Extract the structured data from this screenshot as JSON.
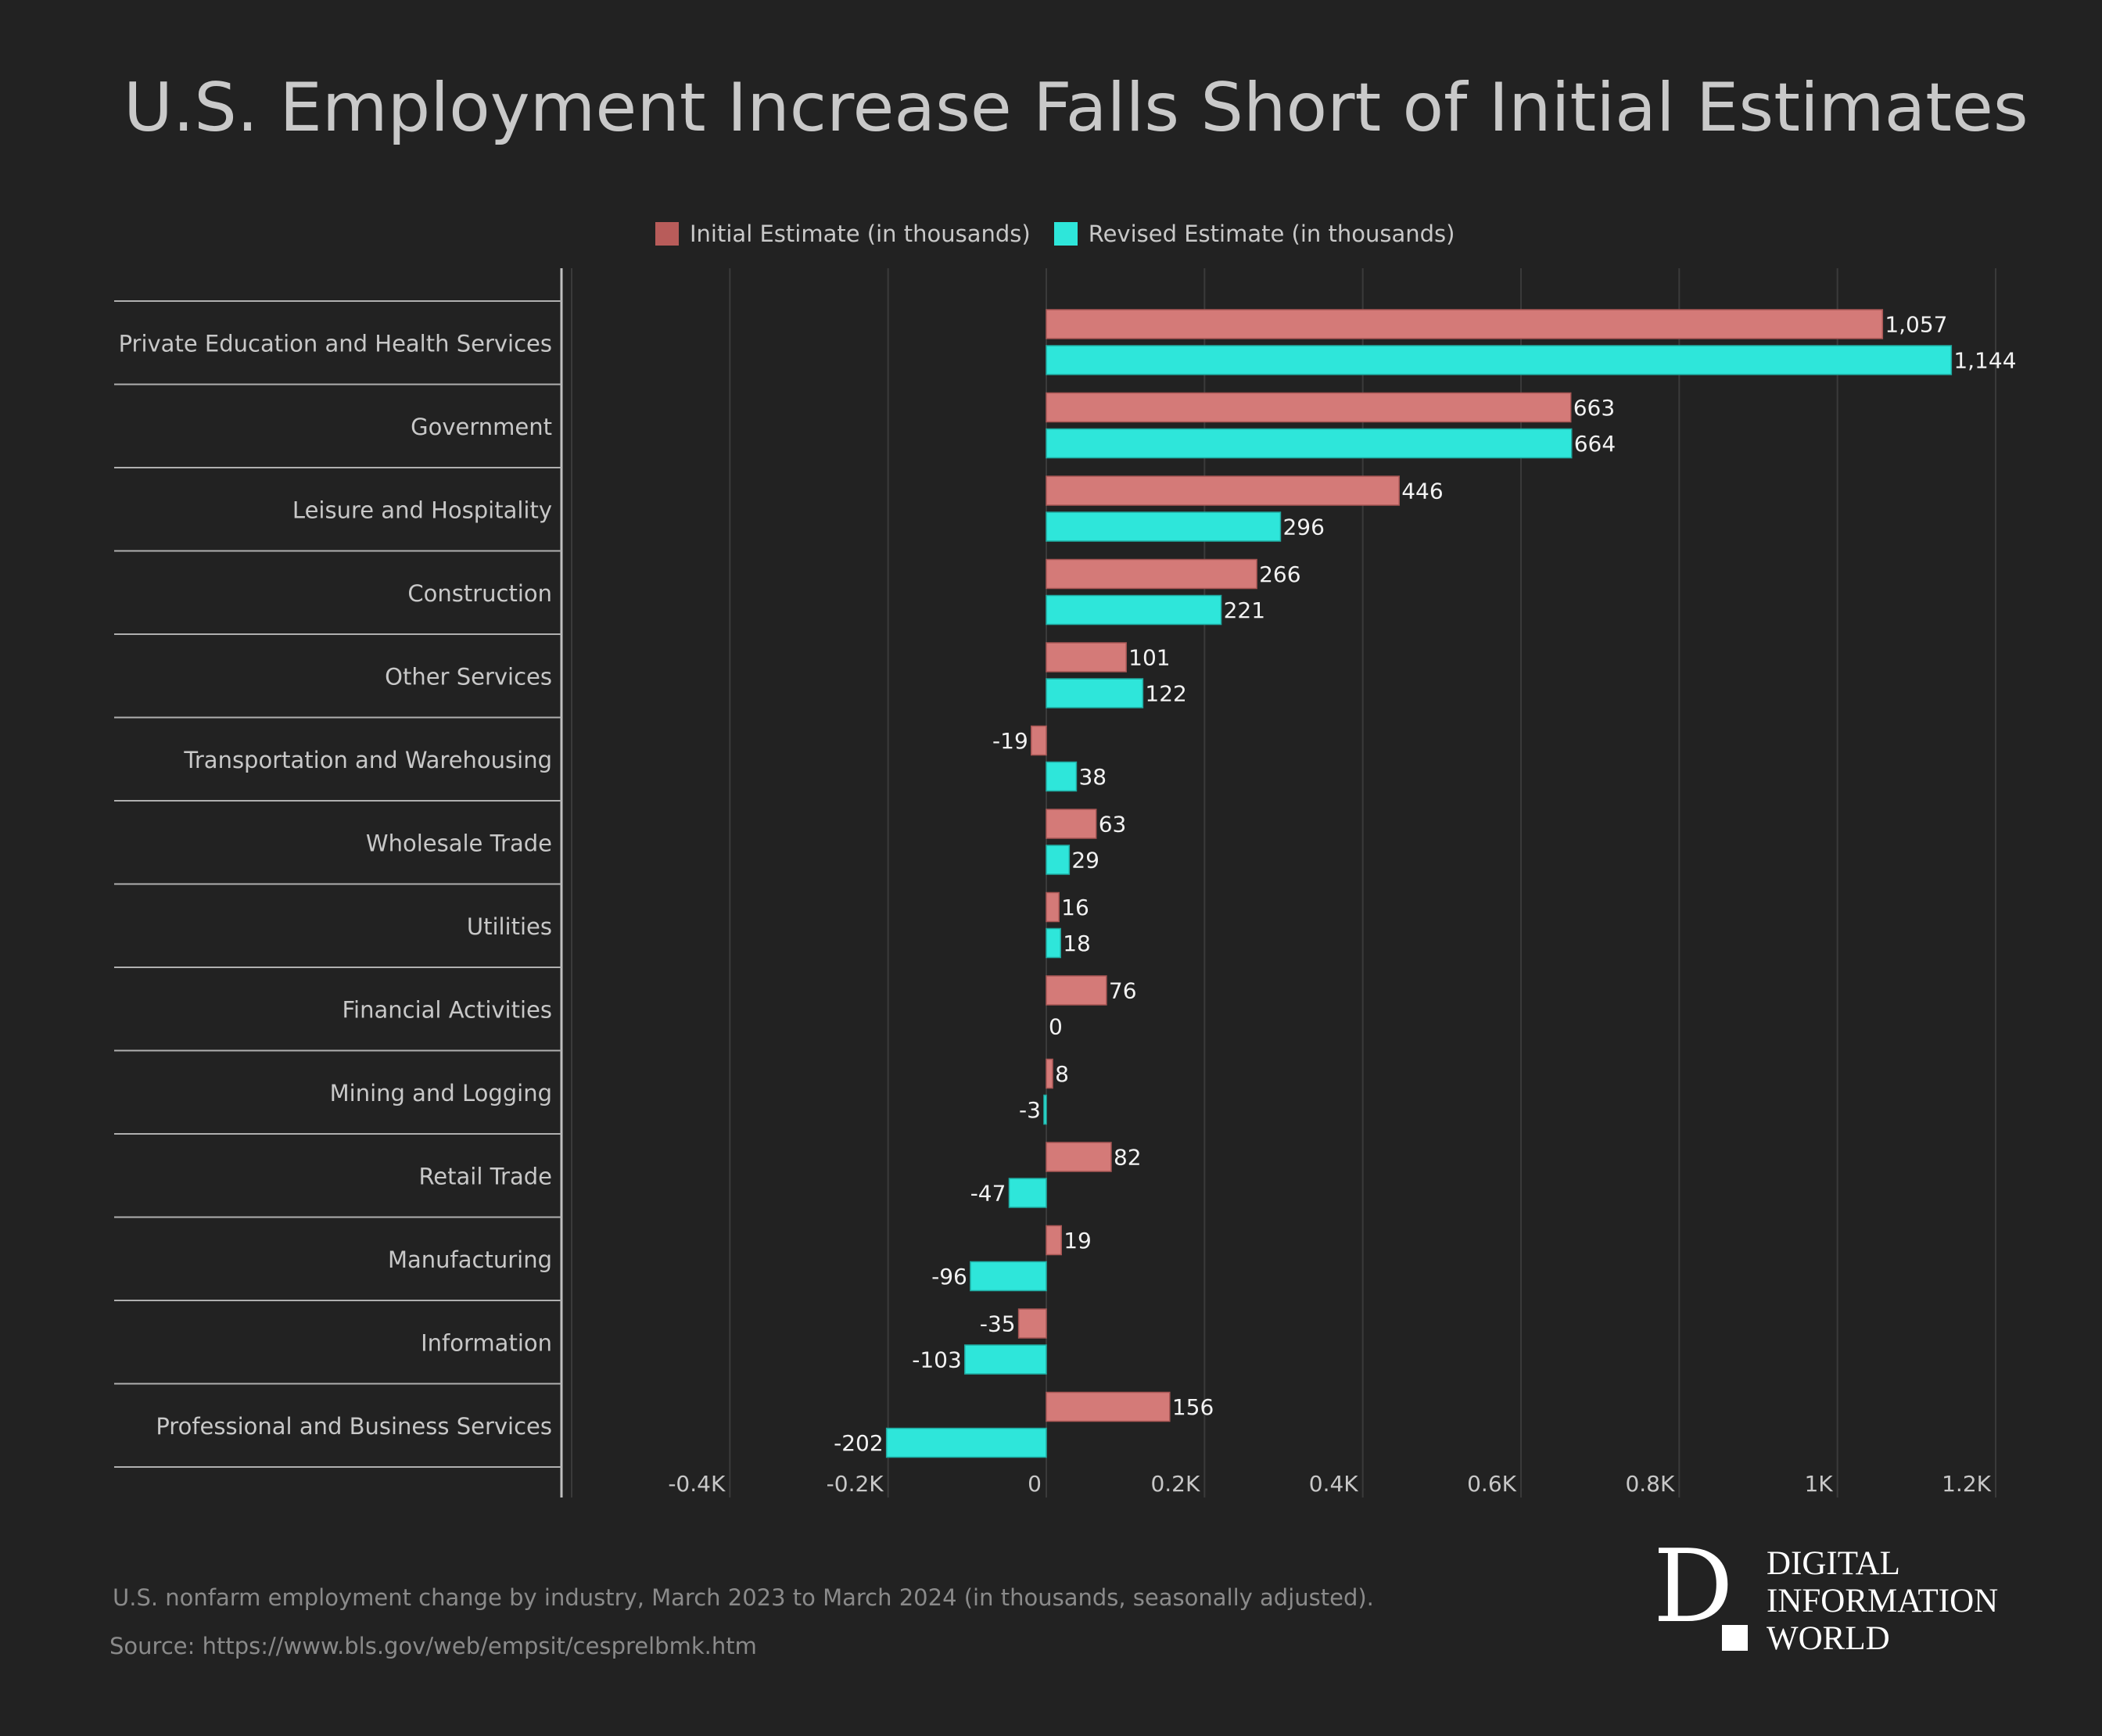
{
  "title": "U.S. Employment Increase Falls Short of Initial Estimates",
  "legend": [
    {
      "label": "Initial Estimate (in thousands)",
      "color": "#d47a78",
      "swatch": "#b85c5a"
    },
    {
      "label": "Revised Estimate (in thousands)",
      "color": "#2ee6da",
      "swatch": "#2ee6da"
    }
  ],
  "footer": {
    "note": "U.S. nonfarm employment change by industry, March 2023 to March 2024 (in thousands, seasonally adjusted).",
    "source": "Source: https://www.bls.gov/web/empsit/cesprelbmk.htm"
  },
  "logo": {
    "mark": "D",
    "lines": [
      "DIGITAL",
      "INFORMATION",
      "WORLD"
    ]
  },
  "chart_data": {
    "type": "bar",
    "orientation": "horizontal",
    "title": "U.S. Employment Increase Falls Short of Initial Estimates",
    "xlabel": "",
    "ylabel": "",
    "xlim": [
      -600,
      1200
    ],
    "x_ticks": [
      -400,
      -200,
      0,
      200,
      400,
      600,
      800,
      1000,
      1200
    ],
    "x_tick_labels": [
      "-0.4K",
      "-0.2K",
      "0",
      "0.2K",
      "0.4K",
      "0.6K",
      "0.8K",
      "1K",
      "1.2K"
    ],
    "grid": true,
    "legend_position": "top-center",
    "categories": [
      "Private Education and Health Services",
      "Government",
      "Leisure and Hospitality",
      "Construction",
      "Other Services",
      "Transportation and Warehousing",
      "Wholesale Trade",
      "Utilities",
      "Financial Activities",
      "Mining and Logging",
      "Retail Trade",
      "Manufacturing",
      "Information",
      "Professional and Business Services"
    ],
    "series": [
      {
        "name": "Initial Estimate (in thousands)",
        "color": "#d47a78",
        "values": [
          1057,
          663,
          446,
          266,
          101,
          -19,
          63,
          16,
          76,
          8,
          82,
          19,
          -35,
          156
        ],
        "labels": [
          "1,057",
          "663",
          "446",
          "266",
          "101",
          "-19",
          "63",
          "16",
          "76",
          "8",
          "82",
          "19",
          "-35",
          "156"
        ]
      },
      {
        "name": "Revised Estimate (in thousands)",
        "color": "#2ee6da",
        "values": [
          1144,
          664,
          296,
          221,
          122,
          38,
          29,
          18,
          0,
          -3,
          -47,
          -96,
          -103,
          -202
        ],
        "labels": [
          "1,144",
          "664",
          "296",
          "221",
          "122",
          "38",
          "29",
          "18",
          "0",
          "-3",
          "-47",
          "-96",
          "-103",
          "-202"
        ]
      }
    ]
  }
}
